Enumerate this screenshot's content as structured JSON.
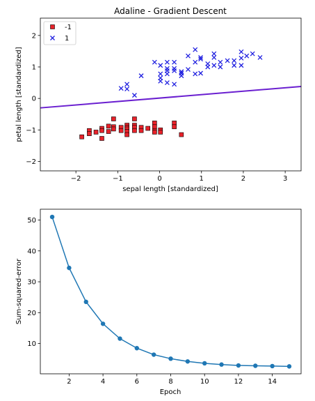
{
  "chart_data": [
    {
      "type": "scatter",
      "title": "Adaline - Gradient Descent",
      "xlabel": "sepal length [standardized]",
      "ylabel": "petal length [standardized]",
      "xlim": [
        -2.85,
        3.38
      ],
      "ylim": [
        -2.3,
        2.55
      ],
      "xticks": [
        -2,
        -1,
        0,
        1,
        2,
        3
      ],
      "yticks": [
        -2,
        -1,
        0,
        1,
        2
      ],
      "legend_position": "top-left",
      "grid": false,
      "decision_boundary": {
        "x": [
          -2.85,
          3.38
        ],
        "y": [
          -0.3,
          0.38
        ],
        "color": "#6a1fd0"
      },
      "series": [
        {
          "name": "-1",
          "marker": "square",
          "color": "#e8222a",
          "points": [
            [
              -1.86,
              -1.22
            ],
            [
              -1.68,
              -1.02
            ],
            [
              -1.68,
              -1.12
            ],
            [
              -1.52,
              -1.07
            ],
            [
              -1.38,
              -0.95
            ],
            [
              -1.38,
              -1.02
            ],
            [
              -1.38,
              -1.27
            ],
            [
              -1.22,
              -0.88
            ],
            [
              -1.22,
              -1.05
            ],
            [
              -1.1,
              -0.65
            ],
            [
              -1.1,
              -0.9
            ],
            [
              -1.1,
              -0.97
            ],
            [
              -0.92,
              -0.92
            ],
            [
              -0.92,
              -1.02
            ],
            [
              -0.78,
              -0.85
            ],
            [
              -0.78,
              -0.92
            ],
            [
              -0.78,
              -0.97
            ],
            [
              -0.78,
              -1.05
            ],
            [
              -0.78,
              -1.15
            ],
            [
              -0.6,
              -0.65
            ],
            [
              -0.6,
              -0.85
            ],
            [
              -0.6,
              -0.92
            ],
            [
              -0.6,
              -1.02
            ],
            [
              -0.44,
              -0.92
            ],
            [
              -0.44,
              -1.02
            ],
            [
              -0.28,
              -0.95
            ],
            [
              -0.12,
              -0.78
            ],
            [
              -0.12,
              -0.9
            ],
            [
              -0.12,
              -1.02
            ],
            [
              -0.12,
              -1.07
            ],
            [
              0.02,
              -1.0
            ],
            [
              0.02,
              -1.07
            ],
            [
              0.35,
              -0.78
            ],
            [
              0.35,
              -0.9
            ],
            [
              0.52,
              -1.15
            ]
          ]
        },
        {
          "name": "1",
          "marker": "x",
          "color": "#2020e0",
          "points": [
            [
              -0.92,
              0.32
            ],
            [
              -0.78,
              0.3
            ],
            [
              -0.78,
              0.45
            ],
            [
              -0.6,
              0.1
            ],
            [
              -0.44,
              0.72
            ],
            [
              -0.12,
              1.15
            ],
            [
              0.02,
              0.55
            ],
            [
              0.02,
              0.65
            ],
            [
              0.02,
              0.78
            ],
            [
              0.02,
              1.05
            ],
            [
              0.18,
              0.5
            ],
            [
              0.18,
              0.78
            ],
            [
              0.18,
              0.88
            ],
            [
              0.18,
              0.95
            ],
            [
              0.18,
              1.15
            ],
            [
              0.35,
              0.45
            ],
            [
              0.35,
              0.88
            ],
            [
              0.35,
              0.95
            ],
            [
              0.35,
              1.15
            ],
            [
              0.52,
              0.72
            ],
            [
              0.52,
              0.8
            ],
            [
              0.52,
              0.85
            ],
            [
              0.68,
              0.92
            ],
            [
              0.68,
              1.35
            ],
            [
              0.85,
              0.78
            ],
            [
              0.85,
              1.15
            ],
            [
              0.85,
              1.55
            ],
            [
              0.98,
              0.8
            ],
            [
              0.98,
              1.25
            ],
            [
              0.98,
              1.3
            ],
            [
              1.15,
              1.0
            ],
            [
              1.15,
              1.1
            ],
            [
              1.3,
              1.05
            ],
            [
              1.3,
              1.3
            ],
            [
              1.3,
              1.42
            ],
            [
              1.45,
              1.0
            ],
            [
              1.45,
              1.15
            ],
            [
              1.62,
              1.2
            ],
            [
              1.78,
              1.05
            ],
            [
              1.78,
              1.2
            ],
            [
              1.95,
              1.05
            ],
            [
              1.95,
              1.28
            ],
            [
              1.95,
              1.48
            ],
            [
              2.08,
              1.35
            ],
            [
              2.22,
              1.42
            ],
            [
              2.4,
              1.3
            ]
          ]
        }
      ]
    },
    {
      "type": "line",
      "title": "",
      "xlabel": "Epoch",
      "ylabel": "Sum-squared-error",
      "xlim": [
        0.3,
        15.7
      ],
      "ylim": [
        0.2,
        53.5
      ],
      "xticks": [
        2,
        4,
        6,
        8,
        10,
        12,
        14
      ],
      "yticks": [
        10,
        20,
        30,
        40,
        50
      ],
      "grid": false,
      "color": "#1f77b4",
      "marker": "circle",
      "x": [
        1,
        2,
        3,
        4,
        5,
        6,
        7,
        8,
        9,
        10,
        11,
        12,
        13,
        14,
        15
      ],
      "y": [
        51.0,
        34.5,
        23.5,
        16.4,
        11.6,
        8.5,
        6.4,
        5.1,
        4.2,
        3.6,
        3.2,
        2.9,
        2.8,
        2.7,
        2.6
      ]
    }
  ]
}
